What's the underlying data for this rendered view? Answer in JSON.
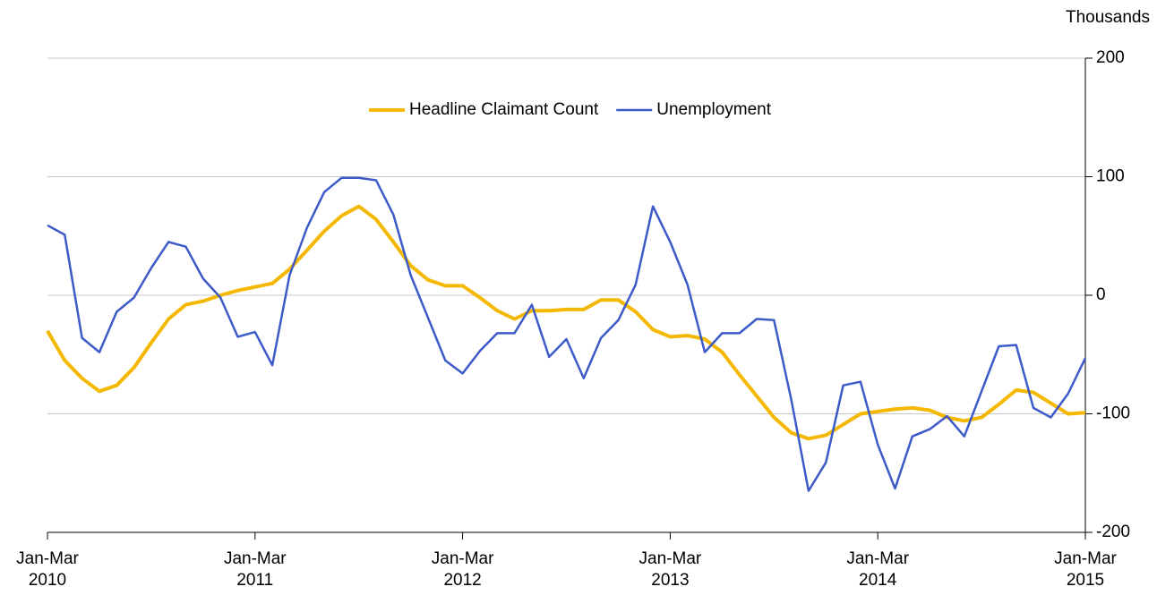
{
  "chart_data": {
    "type": "line",
    "y_label": "Thousands",
    "categories": [
      "Jan-Mar 2010",
      null,
      null,
      null,
      null,
      null,
      null,
      null,
      null,
      null,
      null,
      null,
      "Jan-Mar 2011",
      null,
      null,
      null,
      null,
      null,
      null,
      null,
      null,
      null,
      null,
      null,
      "Jan-Mar 2012",
      null,
      null,
      null,
      null,
      null,
      null,
      null,
      null,
      null,
      null,
      null,
      "Jan-Mar 2013",
      null,
      null,
      null,
      null,
      null,
      null,
      null,
      null,
      null,
      null,
      null,
      "Jan-Mar 2014",
      null,
      null,
      null,
      null,
      null,
      null,
      null,
      null,
      null,
      null,
      null,
      "Jan-Mar 2015"
    ],
    "series": [
      {
        "name": "Headline Claimant Count",
        "color": "#f5b800",
        "values": [
          -30,
          -55,
          -70,
          -81,
          -76,
          -61,
          -40,
          -20,
          -8,
          -5,
          0,
          4,
          7,
          10,
          22,
          38,
          54,
          67,
          75,
          64,
          45,
          25,
          13,
          8,
          8,
          -2,
          -13,
          -20,
          -13,
          -13,
          -12,
          -12,
          -4,
          -4,
          -14,
          -29,
          -35,
          -34,
          -37,
          -48,
          -67,
          -85,
          -103,
          -116,
          -121,
          -118,
          -109,
          -100,
          -98,
          -96,
          -95,
          -97,
          -103,
          -106,
          -103,
          -92,
          -80,
          -82,
          -91,
          -100,
          -99
        ]
      },
      {
        "name": "Unemployment",
        "color": "#3d5bc8",
        "values": [
          59,
          51,
          -36,
          -48,
          -14,
          -2,
          23,
          45,
          41,
          14,
          -2,
          -35,
          -31,
          -59,
          17,
          57,
          87,
          99,
          99,
          97,
          68,
          17,
          -19,
          -55,
          -66,
          -47,
          -32,
          -32,
          -8,
          -52,
          -37,
          -70,
          -36,
          -21,
          9,
          75,
          45,
          9,
          -48,
          -32,
          -32,
          -20,
          -21,
          -88,
          -165,
          -141,
          -76,
          -73,
          -126,
          -163,
          -119,
          -113,
          -102,
          -119,
          -81,
          -43,
          -42,
          -95,
          -103,
          -83,
          -53
        ]
      }
    ],
    "ylim": [
      -200,
      200
    ],
    "yticks": [
      -200,
      -100,
      0,
      100,
      200
    ],
    "grid": true,
    "legend": "top"
  }
}
